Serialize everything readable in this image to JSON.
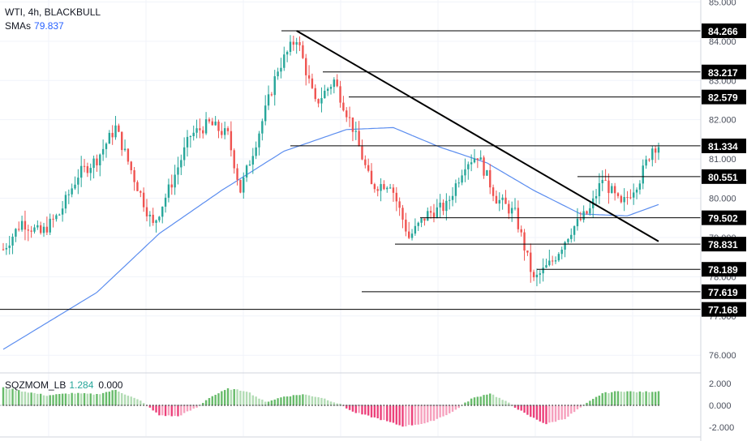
{
  "header": {
    "symbol_line": "WTI, 4h, BLACKBULL",
    "sma_label": "SMAs",
    "sma_value": "79.837"
  },
  "oscillator": {
    "label": "SQZMOM_LB",
    "value1": "1.284",
    "value2": "0.000",
    "ticks": [
      "2.000",
      "0.000",
      "-2.000"
    ],
    "ylim": [
      -2.8,
      2.8
    ]
  },
  "colors": {
    "up": "#26a69a",
    "down": "#ef5350",
    "sma": "#5b8def",
    "hline": "#000000",
    "trendline": "#000000",
    "mom_pos": "#4caf50",
    "mom_neg": "#e91e63"
  },
  "chart_data": {
    "type": "candlestick",
    "symbol": "WTI",
    "timeframe": "4h",
    "ylim": [
      75.55,
      85.05
    ],
    "y_ticks": [
      "85.000",
      "84.000",
      "83.000",
      "82.000",
      "81.000",
      "80.000",
      "79.000",
      "78.000",
      "77.000",
      "76.000"
    ],
    "price_levels": [
      "84.266",
      "83.217",
      "82.579",
      "81.334",
      "80.551",
      "79.502",
      "78.831",
      "78.189",
      "77.619",
      "77.168"
    ],
    "current_price": "81.334",
    "anchors": [
      {
        "i": 0,
        "v": 78.7
      },
      {
        "i": 6,
        "v": 79.4
      },
      {
        "i": 12,
        "v": 79.1
      },
      {
        "i": 18,
        "v": 79.6
      },
      {
        "i": 24,
        "v": 80.6
      },
      {
        "i": 30,
        "v": 81.0
      },
      {
        "i": 36,
        "v": 81.8
      },
      {
        "i": 42,
        "v": 80.5
      },
      {
        "i": 48,
        "v": 79.3
      },
      {
        "i": 54,
        "v": 80.4
      },
      {
        "i": 60,
        "v": 81.6
      },
      {
        "i": 66,
        "v": 81.9
      },
      {
        "i": 72,
        "v": 81.6
      },
      {
        "i": 76,
        "v": 80.2
      },
      {
        "i": 82,
        "v": 81.7
      },
      {
        "i": 88,
        "v": 83.3
      },
      {
        "i": 94,
        "v": 84.1
      },
      {
        "i": 100,
        "v": 82.4
      },
      {
        "i": 106,
        "v": 83.0
      },
      {
        "i": 112,
        "v": 81.8
      },
      {
        "i": 118,
        "v": 80.3
      },
      {
        "i": 124,
        "v": 80.4
      },
      {
        "i": 130,
        "v": 79.0
      },
      {
        "i": 136,
        "v": 79.6
      },
      {
        "i": 142,
        "v": 79.8
      },
      {
        "i": 148,
        "v": 80.9
      },
      {
        "i": 152,
        "v": 81.1
      },
      {
        "i": 158,
        "v": 80.0
      },
      {
        "i": 164,
        "v": 79.6
      },
      {
        "i": 170,
        "v": 77.9
      },
      {
        "i": 176,
        "v": 78.4
      },
      {
        "i": 182,
        "v": 79.2
      },
      {
        "i": 188,
        "v": 79.7
      },
      {
        "i": 192,
        "v": 80.5
      },
      {
        "i": 198,
        "v": 79.8
      },
      {
        "i": 204,
        "v": 80.5
      },
      {
        "i": 208,
        "v": 81.3
      },
      {
        "i": 210,
        "v": 81.35
      }
    ],
    "sma": [
      {
        "i": 0,
        "v": 76.15
      },
      {
        "i": 30,
        "v": 77.6
      },
      {
        "i": 50,
        "v": 79.1
      },
      {
        "i": 70,
        "v": 80.2
      },
      {
        "i": 90,
        "v": 81.2
      },
      {
        "i": 110,
        "v": 81.75
      },
      {
        "i": 125,
        "v": 81.8
      },
      {
        "i": 140,
        "v": 81.3
      },
      {
        "i": 155,
        "v": 80.9
      },
      {
        "i": 170,
        "v": 80.2
      },
      {
        "i": 185,
        "v": 79.6
      },
      {
        "i": 200,
        "v": 79.55
      },
      {
        "i": 210,
        "v": 79.84
      }
    ],
    "trendline": [
      {
        "i": 94,
        "v": 84.266
      },
      {
        "i": 210,
        "v": 78.9
      }
    ],
    "momentum_anchors": [
      {
        "i": 0,
        "v": 1.6
      },
      {
        "i": 8,
        "v": 1.2
      },
      {
        "i": 14,
        "v": 0.9
      },
      {
        "i": 22,
        "v": 1.1
      },
      {
        "i": 30,
        "v": 1.0
      },
      {
        "i": 36,
        "v": 1.4
      },
      {
        "i": 44,
        "v": 0.4
      },
      {
        "i": 50,
        "v": -0.9
      },
      {
        "i": 56,
        "v": -1.0
      },
      {
        "i": 62,
        "v": -0.2
      },
      {
        "i": 66,
        "v": 0.7
      },
      {
        "i": 72,
        "v": 1.5
      },
      {
        "i": 78,
        "v": 1.3
      },
      {
        "i": 84,
        "v": 0.3
      },
      {
        "i": 90,
        "v": 0.8
      },
      {
        "i": 96,
        "v": 1.0
      },
      {
        "i": 102,
        "v": 0.7
      },
      {
        "i": 108,
        "v": 0.1
      },
      {
        "i": 112,
        "v": -0.6
      },
      {
        "i": 120,
        "v": -1.2
      },
      {
        "i": 128,
        "v": -1.9
      },
      {
        "i": 136,
        "v": -1.6
      },
      {
        "i": 144,
        "v": -0.6
      },
      {
        "i": 150,
        "v": 0.6
      },
      {
        "i": 156,
        "v": 1.1
      },
      {
        "i": 162,
        "v": 0.2
      },
      {
        "i": 168,
        "v": -0.9
      },
      {
        "i": 174,
        "v": -1.7
      },
      {
        "i": 180,
        "v": -1.2
      },
      {
        "i": 186,
        "v": 0.0
      },
      {
        "i": 192,
        "v": 1.1
      },
      {
        "i": 198,
        "v": 1.3
      },
      {
        "i": 204,
        "v": 1.2
      },
      {
        "i": 210,
        "v": 1.284
      }
    ]
  }
}
